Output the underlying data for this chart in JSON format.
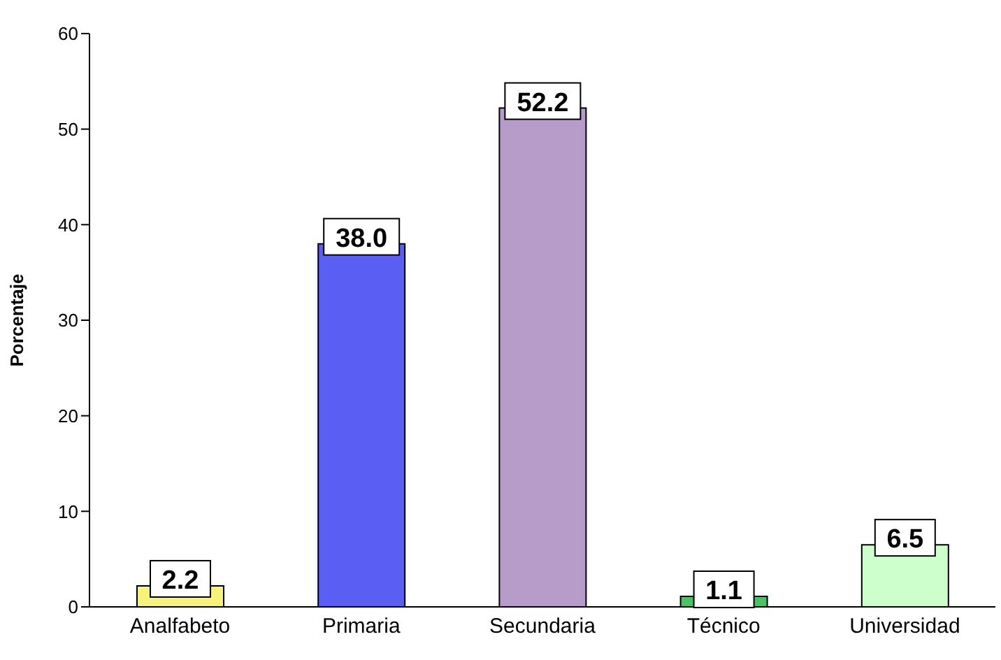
{
  "chart_data": {
    "type": "bar",
    "ylabel": "Porcentaje",
    "categories": [
      "Analfabeto",
      "Primaria",
      "Secundaria",
      "Técnico",
      "Universidad"
    ],
    "values": [
      2.2,
      38.0,
      52.2,
      1.1,
      6.5
    ],
    "colors": [
      "#f7f27a",
      "#5b5ef2",
      "#b79bc9",
      "#4cc266",
      "#ccffcc"
    ],
    "value_labels": [
      "2.2",
      "38.0",
      "52.2",
      "1.1",
      "6.5"
    ],
    "ylim": [
      0,
      60
    ],
    "yticks": [
      0,
      10,
      20,
      30,
      40,
      50,
      60
    ],
    "grid": false
  }
}
